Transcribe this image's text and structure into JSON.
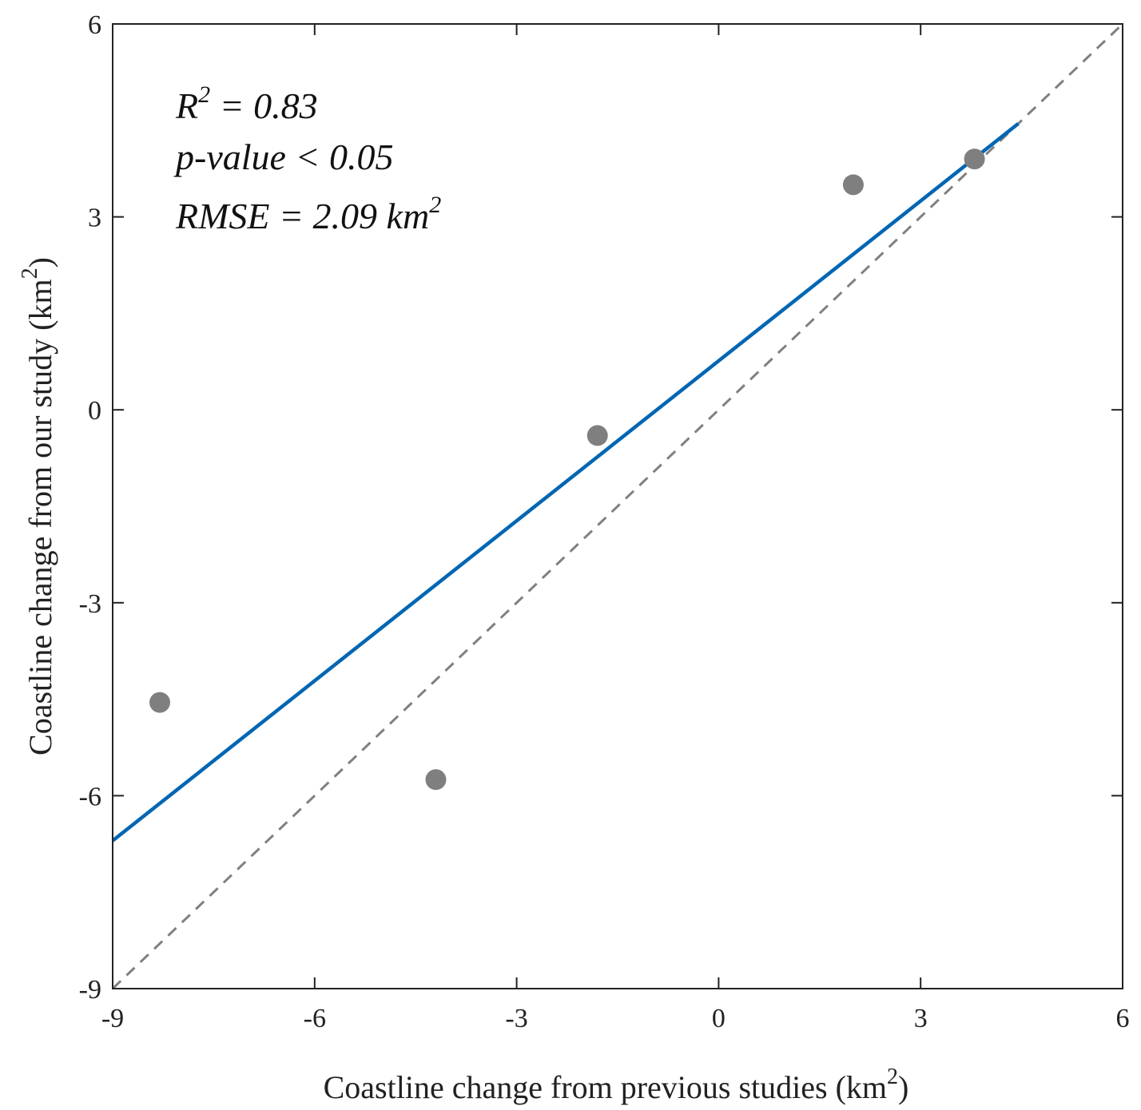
{
  "chart_data": {
    "type": "scatter",
    "xlabel": "Coastline change from previous studies (km",
    "xlabel_sup": "2",
    "xlabel_end": ")",
    "ylabel": "Coastline change from our study (km",
    "ylabel_sup": "2",
    "ylabel_end": ")",
    "xlim": [
      -9,
      6
    ],
    "ylim": [
      -9,
      6
    ],
    "xticks": [
      -9,
      -6,
      -3,
      0,
      3,
      6
    ],
    "yticks": [
      -9,
      -6,
      -3,
      0,
      3,
      6
    ],
    "xtick_labels": [
      "-9",
      "-6",
      "-3",
      "0",
      "3",
      "6"
    ],
    "ytick_labels": [
      "-9",
      "-6",
      "-3",
      "0",
      "3",
      "6"
    ],
    "series": [
      {
        "name": "points",
        "x": [
          -8.3,
          -4.2,
          -1.8,
          2.0,
          3.8
        ],
        "y": [
          -4.55,
          -5.75,
          -0.4,
          3.5,
          3.9
        ],
        "color": "#7f7f7f"
      }
    ],
    "fit_line": {
      "x": [
        -9,
        4.45
      ],
      "y": [
        -6.7,
        4.45
      ],
      "color": "#0066b3"
    },
    "identity_line": {
      "x": [
        -9,
        6
      ],
      "y": [
        -9,
        6
      ],
      "color": "#808080",
      "style": "dashed"
    },
    "annotations": {
      "r2_label": "R",
      "r2_sup": "2",
      "r2_value": " = 0.83",
      "pvalue": "p-value < 0.05",
      "rmse": "RMSE = 2.09 km",
      "rmse_sup": "2"
    }
  }
}
